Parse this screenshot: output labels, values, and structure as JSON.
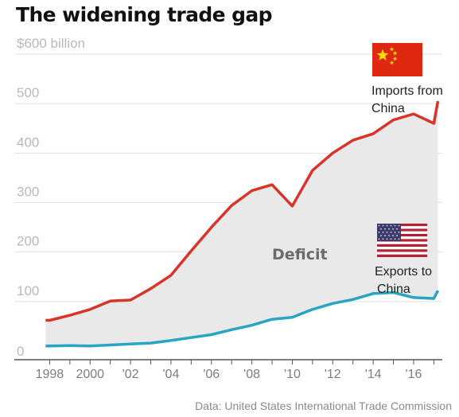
{
  "title": "The widening trade gap",
  "source": "Data: United States International Trade Commission",
  "colors": {
    "imports": "#d7352b",
    "exports": "#2aa4c4",
    "deficit_fill": "#e9e9e9",
    "grid": "#e1e1e1",
    "axis": "#555555"
  },
  "flags": {
    "china": "china-flag-icon",
    "usa": "usa-flag-icon"
  },
  "chart_data": {
    "type": "area",
    "title": "The widening trade gap",
    "y_unit_label": "$600 billion",
    "ylim": [
      0,
      600
    ],
    "xlim": [
      1997,
      2017.3
    ],
    "yticks": [
      {
        "value": 0,
        "label": "0"
      },
      {
        "value": 100,
        "label": "100"
      },
      {
        "value": 200,
        "label": "200"
      },
      {
        "value": 300,
        "label": "300"
      },
      {
        "value": 400,
        "label": "400"
      },
      {
        "value": 500,
        "label": "500"
      },
      {
        "value": 600,
        "label": "$600 billion"
      }
    ],
    "xticks": [
      {
        "value": 1998,
        "label": "1998"
      },
      {
        "value": 2000,
        "label": "2000"
      },
      {
        "value": 2002,
        "label": "'02"
      },
      {
        "value": 2004,
        "label": "'04"
      },
      {
        "value": 2006,
        "label": "'06"
      },
      {
        "value": 2008,
        "label": "'08"
      },
      {
        "value": 2010,
        "label": "'10"
      },
      {
        "value": 2012,
        "label": "'12"
      },
      {
        "value": 2014,
        "label": "'14"
      },
      {
        "value": 2016,
        "label": "'16"
      }
    ],
    "grid": true,
    "x": [
      1997.8,
      1998,
      1999,
      2000,
      2001,
      2002,
      2003,
      2004,
      2005,
      2006,
      2007,
      2008,
      2009,
      2010,
      2011,
      2012,
      2013,
      2014,
      2015,
      2016,
      2017,
      2017.2
    ],
    "series": [
      {
        "name": "Imports from China",
        "values": [
          62,
          62,
          72,
          84,
          101,
          103,
          126,
          153,
          202,
          250,
          294,
          324,
          336,
          293,
          365,
          400,
          426,
          439,
          467,
          479,
          460,
          505
        ]
      },
      {
        "name": "Exports to China",
        "values": [
          10,
          10,
          11,
          10,
          12,
          14,
          16,
          21,
          27,
          33,
          43,
          52,
          64,
          68,
          84,
          96,
          104,
          116,
          118,
          108,
          106,
          122
        ]
      }
    ],
    "annotations": [
      {
        "text": "Deficit",
        "x": 2008.9,
        "y": 210
      },
      {
        "text": "Imports from China",
        "series": "Imports from China"
      },
      {
        "text": "Exports to China",
        "series": "Exports to China"
      }
    ],
    "legend": "inline"
  },
  "labels": {
    "y_unit": "$600 billion",
    "deficit": "Deficit",
    "imports_line1": "Imports from",
    "imports_line2": "China",
    "exports_line1": "Exports to",
    "exports_line2": "China"
  }
}
